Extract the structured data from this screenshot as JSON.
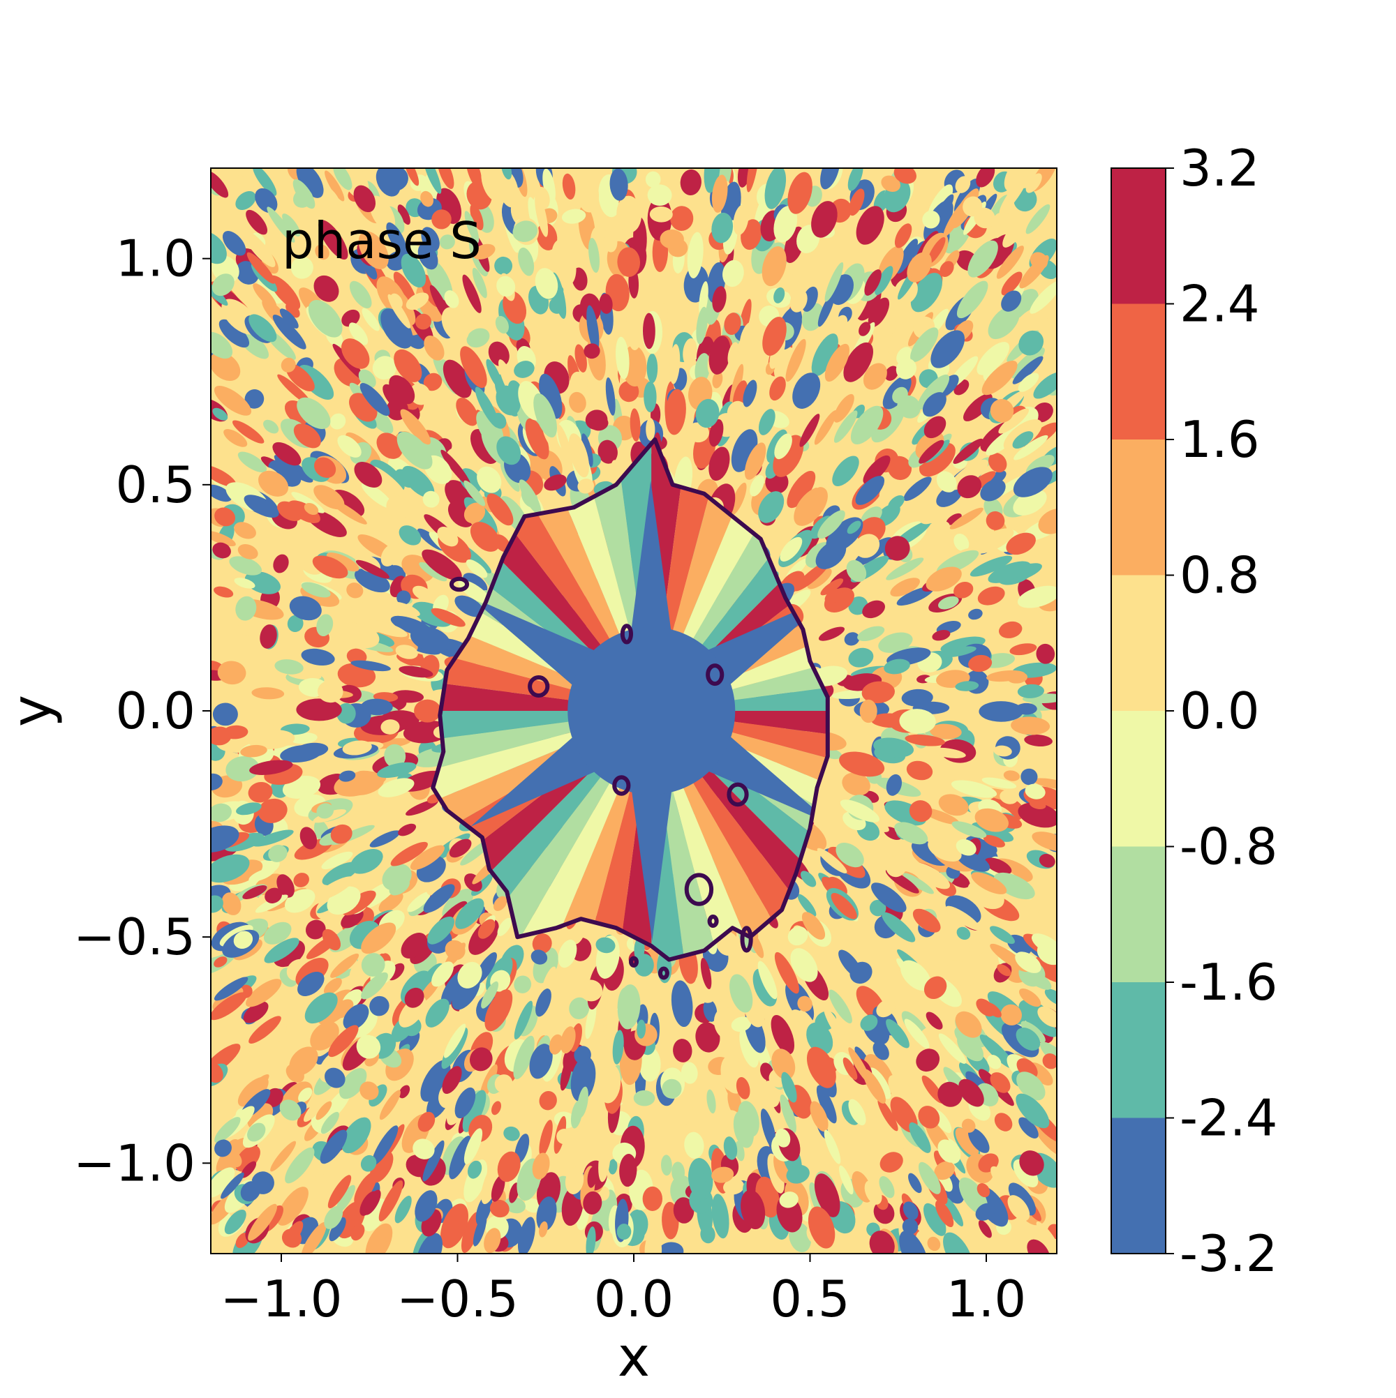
{
  "chart_data": {
    "type": "heatmap",
    "title": "",
    "annotation": "phase S",
    "xlabel": "x",
    "ylabel": "y",
    "xlim": [
      -1.2,
      1.2
    ],
    "ylim": [
      -1.2,
      1.2
    ],
    "xticks": [
      {
        "value": -1.0,
        "label": "−1.0"
      },
      {
        "value": -0.5,
        "label": "−0.5"
      },
      {
        "value": 0.0,
        "label": "0.0"
      },
      {
        "value": 0.5,
        "label": "0.5"
      },
      {
        "value": 1.0,
        "label": "1.0"
      }
    ],
    "yticks": [
      {
        "value": 1.0,
        "label": "1.0"
      },
      {
        "value": 0.5,
        "label": "0.5"
      },
      {
        "value": 0.0,
        "label": "0.0"
      },
      {
        "value": -0.5,
        "label": "−0.5"
      },
      {
        "value": -1.0,
        "label": "−1.0"
      }
    ],
    "grid": false,
    "colorbar": {
      "range": [
        -3.2,
        3.2
      ],
      "levels": [
        -3.2,
        -2.4,
        -1.6,
        -0.8,
        0.0,
        0.8,
        1.6,
        2.4,
        3.2
      ],
      "labels": [
        "-3.2",
        "-2.4",
        "-1.6",
        "-0.8",
        "0.0",
        "0.8",
        "1.6",
        "2.4",
        "3.2"
      ],
      "colors": [
        "#4470b1",
        "#5fbaa8",
        "#b1dea1",
        "#eff8a7",
        "#fde18d",
        "#fbae61",
        "#ef6445",
        "#be2245"
      ]
    },
    "contour": {
      "color": "#3d0a4f",
      "center": [
        0.05,
        0.0
      ],
      "boundary": [
        [
          0.06,
          0.6
        ],
        [
          0.11,
          0.5
        ],
        [
          0.2,
          0.48
        ],
        [
          0.36,
          0.38
        ],
        [
          0.43,
          0.25
        ],
        [
          0.48,
          0.18
        ],
        [
          0.5,
          0.11
        ],
        [
          0.55,
          0.03
        ],
        [
          0.55,
          -0.1
        ],
        [
          0.52,
          -0.17
        ],
        [
          0.5,
          -0.26
        ],
        [
          0.46,
          -0.36
        ],
        [
          0.42,
          -0.44
        ],
        [
          0.33,
          -0.5
        ],
        [
          0.28,
          -0.48
        ],
        [
          0.2,
          -0.53
        ],
        [
          0.1,
          -0.55
        ],
        [
          0.05,
          -0.52
        ],
        [
          -0.05,
          -0.48
        ],
        [
          -0.15,
          -0.46
        ],
        [
          -0.22,
          -0.48
        ],
        [
          -0.33,
          -0.5
        ],
        [
          -0.36,
          -0.4
        ],
        [
          -0.41,
          -0.35
        ],
        [
          -0.43,
          -0.28
        ],
        [
          -0.53,
          -0.22
        ],
        [
          -0.57,
          -0.17
        ],
        [
          -0.54,
          -0.09
        ],
        [
          -0.55,
          -0.01
        ],
        [
          -0.53,
          0.09
        ],
        [
          -0.47,
          0.16
        ],
        [
          -0.42,
          0.24
        ],
        [
          -0.37,
          0.34
        ],
        [
          -0.31,
          0.43
        ],
        [
          -0.17,
          0.45
        ],
        [
          -0.05,
          0.5
        ]
      ],
      "islands": [
        {
          "x": -0.02,
          "y": 0.17,
          "rx": 0.012,
          "ry": 0.018
        },
        {
          "x": 0.23,
          "y": 0.08,
          "rx": 0.02,
          "ry": 0.02
        },
        {
          "x": -0.27,
          "y": 0.054,
          "rx": 0.025,
          "ry": 0.02
        },
        {
          "x": -0.035,
          "y": -0.165,
          "rx": 0.02,
          "ry": 0.018
        },
        {
          "x": 0.295,
          "y": -0.185,
          "rx": 0.025,
          "ry": 0.022
        },
        {
          "x": 0.185,
          "y": -0.395,
          "rx": 0.035,
          "ry": 0.032
        },
        {
          "x": -0.495,
          "y": 0.28,
          "rx": 0.022,
          "ry": 0.012
        },
        {
          "x": 0.32,
          "y": -0.505,
          "rx": 0.012,
          "ry": 0.025
        },
        {
          "x": 0.225,
          "y": -0.465,
          "rx": 0.01,
          "ry": 0.01
        },
        {
          "x": 0.085,
          "y": -0.58,
          "rx": 0.01,
          "ry": 0.01
        },
        {
          "x": 0.0,
          "y": -0.555,
          "rx": 0.008,
          "ry": 0.008
        }
      ]
    }
  }
}
